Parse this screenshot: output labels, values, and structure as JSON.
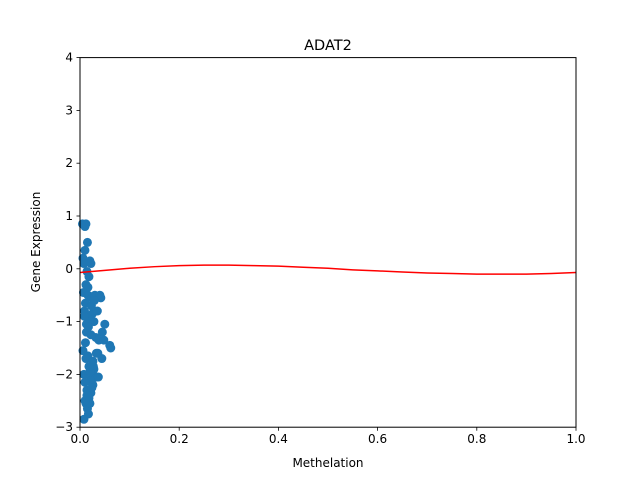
{
  "chart_data": {
    "type": "scatter",
    "title": "ADAT2",
    "xlabel": "Methelation",
    "ylabel": "Gene Expression",
    "xlim": [
      0.0,
      1.0
    ],
    "ylim": [
      -3,
      4
    ],
    "xticks": [
      "0.0",
      "0.2",
      "0.4",
      "0.6",
      "0.8",
      "1.0"
    ],
    "xtick_values": [
      0.0,
      0.2,
      0.4,
      0.6,
      0.8,
      1.0
    ],
    "yticks": [
      "−3",
      "−2",
      "−1",
      "0",
      "1",
      "2",
      "3",
      "4"
    ],
    "ytick_values": [
      -3,
      -2,
      -1,
      0,
      1,
      2,
      3,
      4
    ],
    "grid": false,
    "colors": {
      "points": "#1f77b4",
      "fit_line": "#ff0000"
    },
    "series": [
      {
        "kind": "scatter",
        "x": [
          0.005,
          0.01,
          0.012,
          0.015,
          0.01,
          0.02,
          0.006,
          0.008,
          0.014,
          0.022,
          0.018,
          0.012,
          0.007,
          0.016,
          0.024,
          0.011,
          0.009,
          0.025,
          0.019,
          0.013,
          0.03,
          0.04,
          0.042,
          0.035,
          0.028,
          0.045,
          0.05,
          0.032,
          0.038,
          0.06,
          0.062,
          0.048,
          0.036,
          0.044,
          0.028,
          0.031,
          0.026,
          0.022,
          0.034,
          0.018,
          0.012,
          0.015,
          0.02,
          0.017,
          0.008,
          0.01,
          0.014,
          0.021,
          0.027,
          0.016,
          0.006,
          0.011,
          0.013,
          0.019,
          0.009,
          0.023,
          0.029,
          0.017,
          0.012,
          0.008,
          0.024,
          0.02,
          0.026,
          0.014,
          0.01,
          0.018,
          0.033,
          0.037,
          0.022,
          0.016
        ],
        "y": [
          0.85,
          0.8,
          0.85,
          0.5,
          0.35,
          0.15,
          0.2,
          0.1,
          -0.05,
          0.1,
          -0.15,
          -0.3,
          -0.45,
          -0.5,
          -0.55,
          -0.65,
          -0.8,
          -0.85,
          -0.95,
          -1.05,
          -0.5,
          -0.5,
          -0.55,
          -0.8,
          -1.0,
          -1.2,
          -1.05,
          -1.3,
          -1.35,
          -1.45,
          -1.5,
          -1.35,
          -1.6,
          -1.7,
          -1.9,
          -2.05,
          -2.2,
          -2.35,
          -2.05,
          -2.45,
          -2.55,
          -2.65,
          -2.55,
          -2.75,
          -2.85,
          -2.5,
          -2.3,
          -2.1,
          -1.85,
          -1.65,
          -1.55,
          -1.4,
          -1.2,
          -1.0,
          -0.9,
          -0.7,
          -0.6,
          -1.1,
          -1.7,
          -2.0,
          -2.25,
          -1.95,
          -1.75,
          -2.4,
          -2.15,
          -1.85,
          -1.6,
          -2.05,
          -1.25,
          -0.35
        ]
      },
      {
        "kind": "line",
        "x": [
          0.0,
          0.05,
          0.1,
          0.15,
          0.2,
          0.25,
          0.3,
          0.35,
          0.4,
          0.45,
          0.5,
          0.55,
          0.6,
          0.65,
          0.7,
          0.75,
          0.8,
          0.85,
          0.9,
          0.95,
          1.0
        ],
        "y": [
          -0.07,
          -0.03,
          0.01,
          0.04,
          0.06,
          0.07,
          0.07,
          0.06,
          0.05,
          0.03,
          0.01,
          -0.02,
          -0.04,
          -0.06,
          -0.08,
          -0.09,
          -0.1,
          -0.1,
          -0.1,
          -0.09,
          -0.07
        ]
      }
    ]
  }
}
